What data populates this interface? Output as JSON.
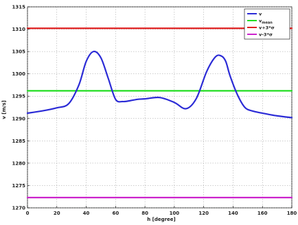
{
  "chart_data": {
    "type": "line",
    "xlabel": "h [degree]",
    "ylabel": "v [m/s]",
    "xlim": [
      0,
      180
    ],
    "ylim": [
      1270,
      1315
    ],
    "xticks": [
      0,
      20,
      40,
      60,
      80,
      100,
      120,
      140,
      160,
      180
    ],
    "yticks": [
      1270,
      1275,
      1280,
      1285,
      1290,
      1295,
      1300,
      1305,
      1310,
      1315
    ],
    "grid": true,
    "legend_position": "top-right",
    "series": [
      {
        "name": "v",
        "color": "#2b2bd6",
        "x": [
          0,
          10,
          20,
          28,
          35,
          40,
          45,
          50,
          55,
          60,
          65,
          70,
          75,
          80,
          90,
          100,
          108,
          115,
          122,
          128,
          132,
          135,
          138,
          143,
          148,
          153,
          160,
          170,
          180
        ],
        "y": [
          1291.2,
          1291.7,
          1292.4,
          1293.3,
          1297.5,
          1302.8,
          1305.0,
          1303.6,
          1299.0,
          1294.3,
          1293.8,
          1294.0,
          1294.3,
          1294.4,
          1294.7,
          1293.6,
          1292.2,
          1294.5,
          1300.5,
          1303.8,
          1304.0,
          1302.8,
          1299.5,
          1295.3,
          1292.5,
          1291.7,
          1291.2,
          1290.6,
          1290.2
        ]
      },
      {
        "name": "v_mean",
        "legend_label": "v",
        "legend_subscript": "mean",
        "color": "#22dd22",
        "x": [
          0,
          180
        ],
        "y": [
          1296.2,
          1296.2
        ]
      },
      {
        "name": "v+3*σ",
        "color": "#e02020",
        "x": [
          0,
          180
        ],
        "y": [
          1310.2,
          1310.2
        ]
      },
      {
        "name": "v-3*σ",
        "color": "#cc22cc",
        "x": [
          0,
          180
        ],
        "y": [
          1272.3,
          1272.3
        ]
      }
    ]
  }
}
